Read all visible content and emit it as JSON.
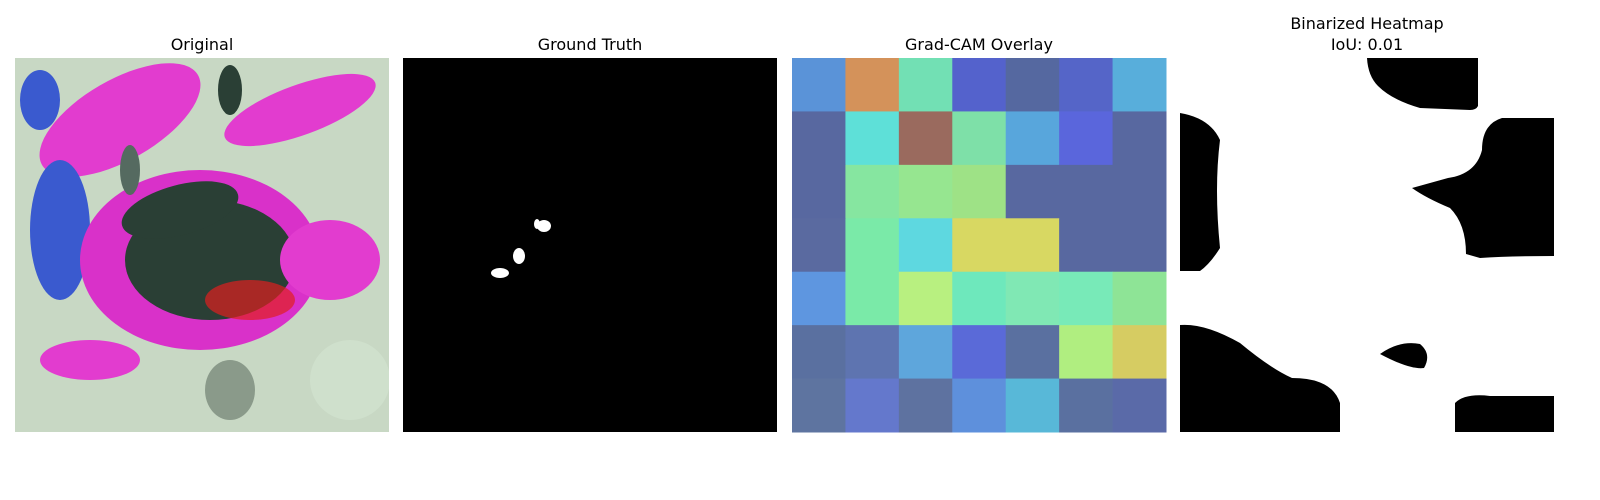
{
  "panels": [
    {
      "title": "Original"
    },
    {
      "title": "Ground Truth"
    },
    {
      "title": "Grad-CAM Overlay"
    },
    {
      "title": "Binarized Heatmap",
      "subtitle": "IoU: 0.01"
    }
  ]
}
